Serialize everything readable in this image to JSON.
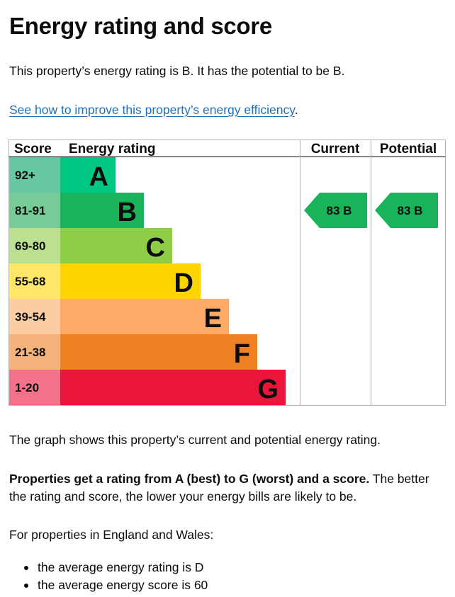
{
  "page": {
    "heading": "Energy rating and score",
    "intro": "This property’s energy rating is B. It has the potential to be B.",
    "link_text": "See how to improve this property’s energy efficiency",
    "link_suffix": ".",
    "graph_caption": "The graph shows this property’s current and potential energy rating.",
    "rating_bold": "Properties get a rating from A (best) to G (worst) and a score.",
    "rating_rest": " The better the rating and score, the lower your energy bills are likely to be.",
    "england_intro": "For properties in England and Wales:",
    "bullets": [
      "the average energy rating is D",
      "the average energy score is 60"
    ]
  },
  "chart_data": {
    "type": "bar",
    "headers": [
      "Score",
      "Energy rating",
      "Current",
      "Potential"
    ],
    "bands": [
      {
        "score_range": "92+",
        "letter": "A",
        "min": 92,
        "max": 100,
        "color": "#00c781",
        "score_bg": "#67c9a3"
      },
      {
        "score_range": "81-91",
        "letter": "B",
        "min": 81,
        "max": 91,
        "color": "#19b459",
        "score_bg": "#75cc96"
      },
      {
        "score_range": "69-80",
        "letter": "C",
        "min": 69,
        "max": 80,
        "color": "#8dce46",
        "score_bg": "#bbe190"
      },
      {
        "score_range": "55-68",
        "letter": "D",
        "min": 55,
        "max": 68,
        "color": "#ffd500",
        "score_bg": "#ffe666"
      },
      {
        "score_range": "39-54",
        "letter": "E",
        "min": 39,
        "max": 54,
        "color": "#fcaa65",
        "score_bg": "#fdcca3"
      },
      {
        "score_range": "21-38",
        "letter": "F",
        "min": 21,
        "max": 38,
        "color": "#ef8023",
        "score_bg": "#f5b37b"
      },
      {
        "score_range": "1-20",
        "letter": "G",
        "min": 1,
        "max": 20,
        "color": "#e9153b",
        "score_bg": "#f27389"
      }
    ],
    "current": {
      "score": 83,
      "letter": "B",
      "label": "83  B"
    },
    "potential": {
      "score": 83,
      "letter": "B",
      "label": "83  B"
    }
  }
}
